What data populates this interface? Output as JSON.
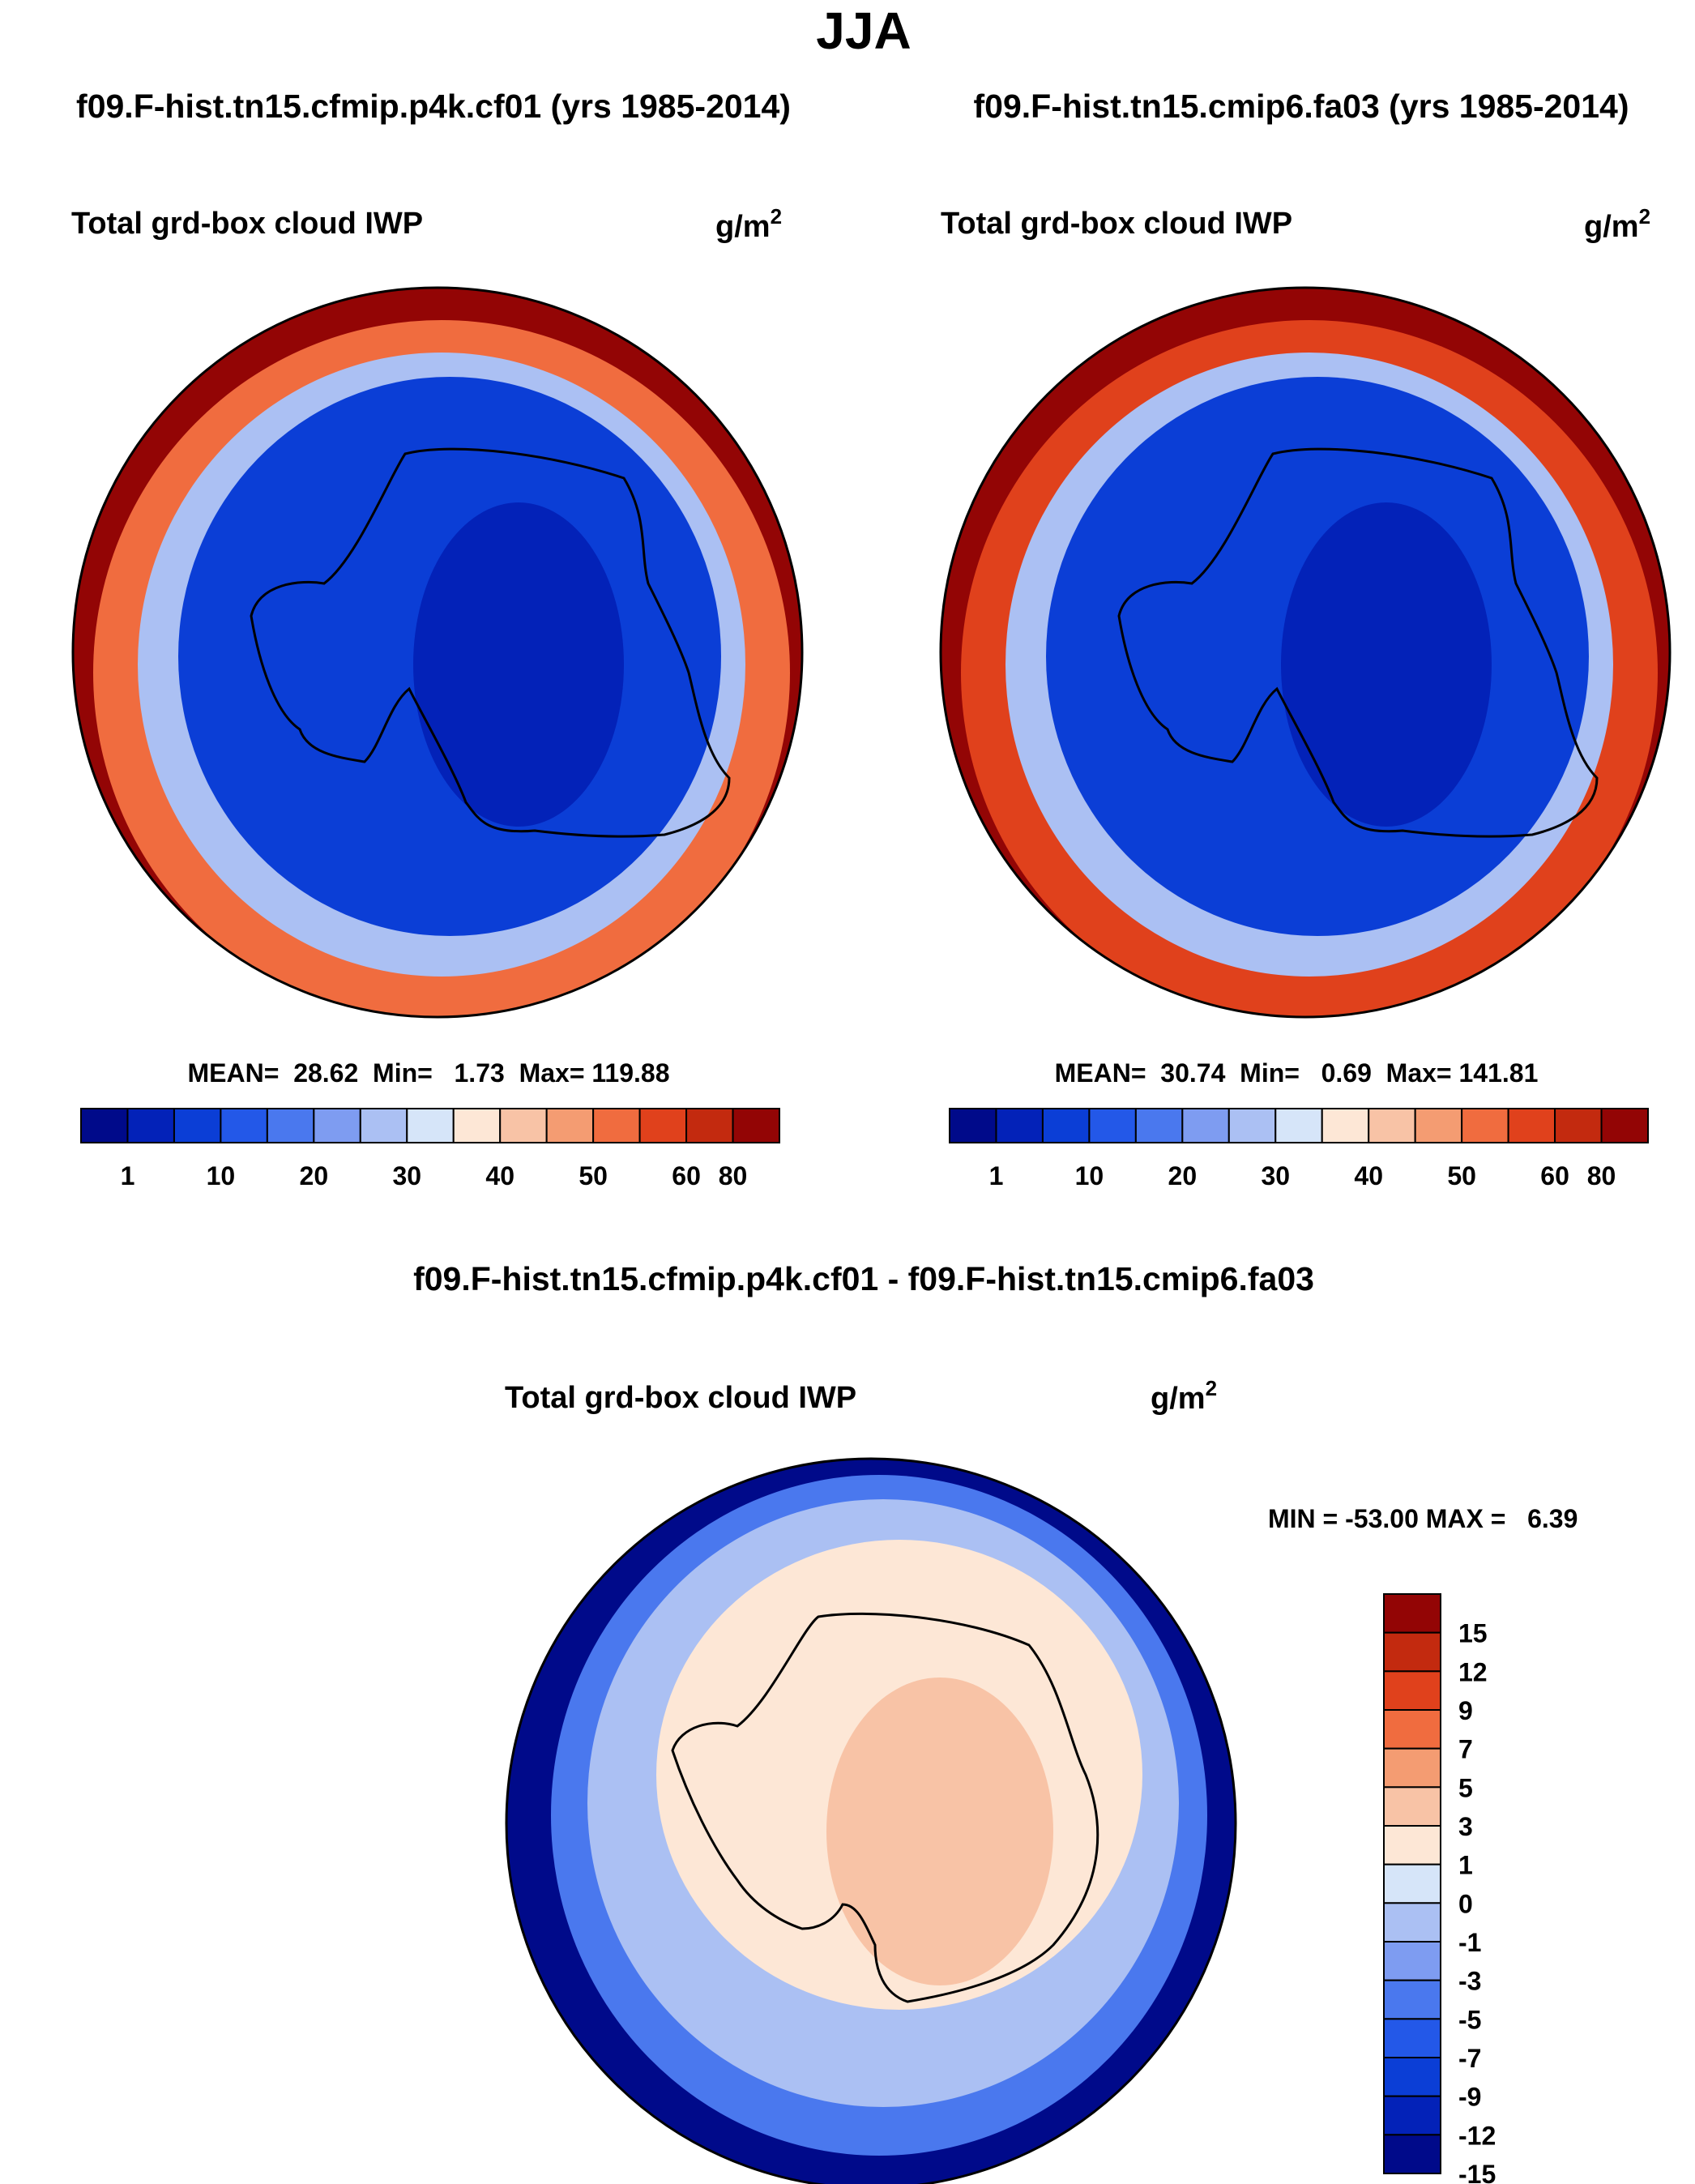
{
  "figure": {
    "title": "JJA",
    "diff_title": "f09.F-hist.tn15.cfmip.p4k.cf01 - f09.F-hist.tn15.cmip6.fa03"
  },
  "chart_data": [
    {
      "type": "heatmap",
      "projection": "south polar stereographic",
      "case_title": "f09.F-hist.tn15.cfmip.p4k.cf01 (yrs 1985-2014)",
      "variable": "Total grd-box cloud IWP",
      "units_base": "g/m",
      "units_exp": "2",
      "stats_text": "MEAN=  28.62  Min=   1.73  Max= 119.88",
      "stats": {
        "mean": 28.62,
        "min": 1.73,
        "max": 119.88
      },
      "colorbar_tick_labels": [
        "1",
        "10",
        "20",
        "30",
        "40",
        "50",
        "60",
        "80"
      ],
      "colorbar_colors": [
        "#000a8a",
        "#0322b8",
        "#0b3ed6",
        "#2358e8",
        "#4a78ee",
        "#7e9cf1",
        "#abc0f3",
        "#d6e5f9",
        "#fde7d6",
        "#f8c3a6",
        "#f49c72",
        "#f06c3f",
        "#e0411c",
        "#c32a0f",
        "#930505"
      ],
      "region_levels": {
        "ocean_north": 80,
        "ocean_ring": 55,
        "transition": 30,
        "inner_sea": 14,
        "continent_interior": 8
      }
    },
    {
      "type": "heatmap",
      "projection": "south polar stereographic",
      "case_title": "f09.F-hist.tn15.cmip6.fa03 (yrs 1985-2014)",
      "variable": "Total grd-box cloud IWP",
      "units_base": "g/m",
      "units_exp": "2",
      "stats_text": "MEAN=  30.74  Min=   0.69  Max= 141.81",
      "stats": {
        "mean": 30.74,
        "min": 0.69,
        "max": 141.81
      },
      "colorbar_tick_labels": [
        "1",
        "10",
        "20",
        "30",
        "40",
        "50",
        "60",
        "80"
      ],
      "colorbar_colors": [
        "#000a8a",
        "#0322b8",
        "#0b3ed6",
        "#2358e8",
        "#4a78ee",
        "#7e9cf1",
        "#abc0f3",
        "#d6e5f9",
        "#fde7d6",
        "#f8c3a6",
        "#f49c72",
        "#f06c3f",
        "#e0411c",
        "#c32a0f",
        "#930505"
      ],
      "region_levels": {
        "ocean_north": 85,
        "ocean_ring": 60,
        "transition": 30,
        "inner_sea": 13,
        "continent_interior": 6
      }
    },
    {
      "type": "heatmap",
      "projection": "south polar stereographic",
      "variable": "Total grd-box cloud IWP",
      "units_base": "g/m",
      "units_exp": "2",
      "stats_text": "MIN = -53.00 MAX =   6.39",
      "stats": {
        "min": -53.0,
        "max": 6.39
      },
      "colorbar_labels": [
        "15",
        "12",
        "9",
        "7",
        "5",
        "3",
        "1",
        "0",
        "-1",
        "-3",
        "-5",
        "-7",
        "-9",
        "-12",
        "-15"
      ],
      "colorbar_colors_top_to_bottom": [
        "#930505",
        "#c32a0f",
        "#e0411c",
        "#f06c3f",
        "#f49c72",
        "#f8c3a6",
        "#fde7d6",
        "#d6e5f9",
        "#abc0f3",
        "#7e9cf1",
        "#4a78ee",
        "#2358e8",
        "#0b3ed6",
        "#0322b8",
        "#000a8a"
      ],
      "region_levels": {
        "outer_ring": -15,
        "ocean_middle": -5,
        "ocean_inner": -1,
        "continent": 2,
        "east_interior": 4
      }
    }
  ]
}
